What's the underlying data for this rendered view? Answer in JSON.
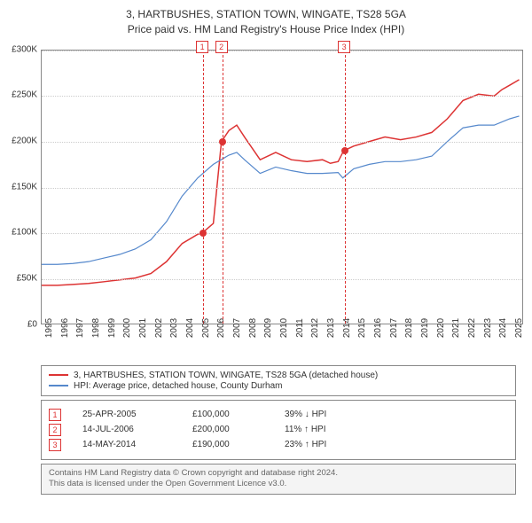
{
  "title": "3, HARTBUSHES, STATION TOWN, WINGATE, TS28 5GA",
  "subtitle": "Price paid vs. HM Land Registry's House Price Index (HPI)",
  "chart": {
    "type": "line",
    "background_color": "#ffffff",
    "grid_color": "#cccccc",
    "border_color": "#888888",
    "xlim": [
      1995,
      2025.8
    ],
    "ylim": [
      0,
      300000
    ],
    "ytick_step": 50000,
    "yticks": [
      "£0",
      "£50K",
      "£100K",
      "£150K",
      "£200K",
      "£250K",
      "£300K"
    ],
    "xticks": [
      1995,
      1996,
      1997,
      1998,
      1999,
      2000,
      2001,
      2002,
      2003,
      2004,
      2005,
      2006,
      2007,
      2008,
      2009,
      2010,
      2011,
      2012,
      2013,
      2014,
      2015,
      2016,
      2017,
      2018,
      2019,
      2020,
      2021,
      2022,
      2023,
      2024,
      2025
    ],
    "series": [
      {
        "name": "property",
        "label": "3, HARTBUSHES, STATION TOWN, WINGATE, TS28 5GA (detached house)",
        "color": "#dd3333",
        "line_width": 1.5,
        "points": [
          [
            1995,
            42000
          ],
          [
            1996,
            42000
          ],
          [
            1997,
            43000
          ],
          [
            1998,
            44000
          ],
          [
            1999,
            46000
          ],
          [
            2000,
            48000
          ],
          [
            2001,
            50000
          ],
          [
            2002,
            55000
          ],
          [
            2003,
            68000
          ],
          [
            2004,
            88000
          ],
          [
            2005.0,
            98000
          ],
          [
            2005.31,
            100000
          ],
          [
            2005.32,
            100000
          ],
          [
            2006.0,
            110000
          ],
          [
            2006.52,
            200000
          ],
          [
            2006.53,
            200000
          ],
          [
            2007,
            212000
          ],
          [
            2007.5,
            218000
          ],
          [
            2008,
            205000
          ],
          [
            2009,
            180000
          ],
          [
            2010,
            188000
          ],
          [
            2011,
            180000
          ],
          [
            2012,
            178000
          ],
          [
            2013,
            180000
          ],
          [
            2013.5,
            176000
          ],
          [
            2014,
            178000
          ],
          [
            2014.36,
            190000
          ],
          [
            2014.37,
            190000
          ],
          [
            2015,
            195000
          ],
          [
            2016,
            200000
          ],
          [
            2017,
            205000
          ],
          [
            2018,
            202000
          ],
          [
            2019,
            205000
          ],
          [
            2020,
            210000
          ],
          [
            2021,
            225000
          ],
          [
            2022,
            245000
          ],
          [
            2023,
            252000
          ],
          [
            2024,
            250000
          ],
          [
            2024.5,
            257000
          ],
          [
            2025,
            262000
          ],
          [
            2025.6,
            268000
          ]
        ]
      },
      {
        "name": "hpi",
        "label": "HPI: Average price, detached house, County Durham",
        "color": "#5588cc",
        "line_width": 1.2,
        "points": [
          [
            1995,
            65000
          ],
          [
            1996,
            65000
          ],
          [
            1997,
            66000
          ],
          [
            1998,
            68000
          ],
          [
            1999,
            72000
          ],
          [
            2000,
            76000
          ],
          [
            2001,
            82000
          ],
          [
            2002,
            92000
          ],
          [
            2003,
            112000
          ],
          [
            2004,
            140000
          ],
          [
            2005,
            160000
          ],
          [
            2006,
            175000
          ],
          [
            2007,
            185000
          ],
          [
            2007.5,
            188000
          ],
          [
            2008,
            180000
          ],
          [
            2009,
            165000
          ],
          [
            2010,
            172000
          ],
          [
            2011,
            168000
          ],
          [
            2012,
            165000
          ],
          [
            2013,
            165000
          ],
          [
            2014,
            166000
          ],
          [
            2014.3,
            160000
          ],
          [
            2015,
            170000
          ],
          [
            2016,
            175000
          ],
          [
            2017,
            178000
          ],
          [
            2018,
            178000
          ],
          [
            2019,
            180000
          ],
          [
            2020,
            184000
          ],
          [
            2021,
            200000
          ],
          [
            2022,
            215000
          ],
          [
            2023,
            218000
          ],
          [
            2024,
            218000
          ],
          [
            2025,
            225000
          ],
          [
            2025.6,
            228000
          ]
        ]
      }
    ],
    "event_markers": [
      {
        "n": "1",
        "x": 2005.31,
        "y": 100000
      },
      {
        "n": "2",
        "x": 2006.53,
        "y": 200000
      },
      {
        "n": "3",
        "x": 2014.37,
        "y": 190000
      }
    ]
  },
  "legend": {
    "items": [
      {
        "color": "#dd3333",
        "label": "3, HARTBUSHES, STATION TOWN, WINGATE, TS28 5GA (detached house)"
      },
      {
        "color": "#5588cc",
        "label": "HPI: Average price, detached house, County Durham"
      }
    ]
  },
  "annotations": [
    {
      "n": "1",
      "date": "25-APR-2005",
      "price": "£100,000",
      "delta": "39% ↓ HPI"
    },
    {
      "n": "2",
      "date": "14-JUL-2006",
      "price": "£200,000",
      "delta": "11% ↑ HPI"
    },
    {
      "n": "3",
      "date": "14-MAY-2014",
      "price": "£190,000",
      "delta": "23% ↑ HPI"
    }
  ],
  "footer": {
    "line1": "Contains HM Land Registry data © Crown copyright and database right 2024.",
    "line2": "This data is licensed under the Open Government Licence v3.0."
  }
}
